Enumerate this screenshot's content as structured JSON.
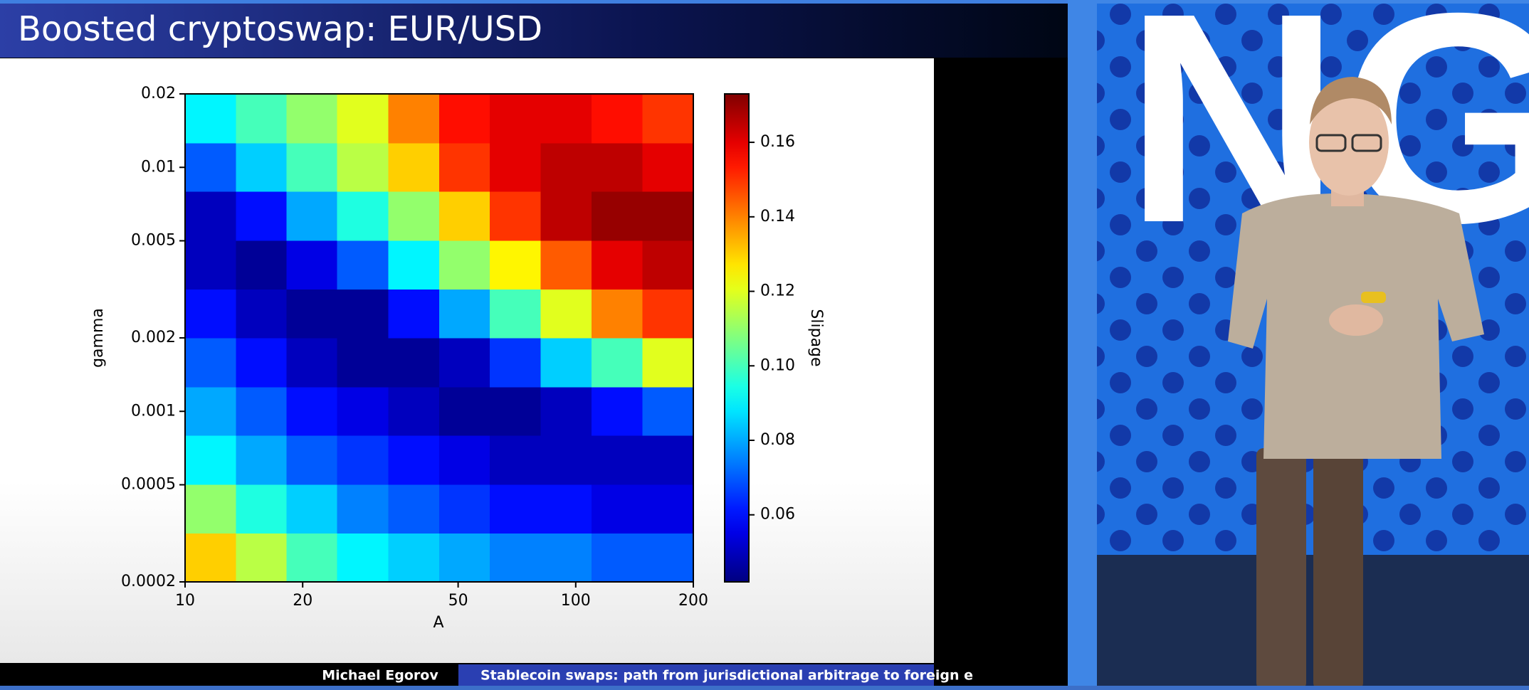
{
  "slide": {
    "title": "Boosted cryptoswap: EUR/USD",
    "footer_author": "Michael Egorov",
    "footer_talk": "Stablecoin swaps: path from jurisdictional arbitrage to foreign e"
  },
  "backdrop_text": "NG",
  "chart_data": {
    "type": "heatmap",
    "xlabel": "A",
    "ylabel": "gamma",
    "colorbar_label": "Slipage",
    "log_x": true,
    "log_y": true,
    "xlim": [
      10,
      200
    ],
    "ylim": [
      0.0002,
      0.02
    ],
    "xticks": [
      10,
      20,
      50,
      100,
      200
    ],
    "yticks": [
      0.0002,
      0.0005,
      0.001,
      0.002,
      0.005,
      0.01,
      0.02
    ],
    "xbins": [
      10,
      13.5,
      18.2,
      24.5,
      33.1,
      44.7,
      60.3,
      81.4,
      109.8,
      148.2,
      200
    ],
    "ybins": [
      0.0002,
      0.000317,
      0.000502,
      0.000796,
      0.00126,
      0.002,
      0.00317,
      0.00502,
      0.00796,
      0.0126,
      0.02
    ],
    "values": [
      [
        0.13,
        0.115,
        0.1,
        0.09,
        0.085,
        0.08,
        0.075,
        0.075,
        0.07,
        0.07
      ],
      [
        0.11,
        0.095,
        0.085,
        0.075,
        0.07,
        0.065,
        0.06,
        0.06,
        0.055,
        0.055
      ],
      [
        0.09,
        0.08,
        0.07,
        0.065,
        0.06,
        0.055,
        0.05,
        0.05,
        0.05,
        0.05
      ],
      [
        0.08,
        0.07,
        0.06,
        0.055,
        0.05,
        0.045,
        0.045,
        0.05,
        0.06,
        0.07
      ],
      [
        0.07,
        0.06,
        0.05,
        0.045,
        0.045,
        0.05,
        0.065,
        0.085,
        0.1,
        0.12
      ],
      [
        0.06,
        0.05,
        0.045,
        0.045,
        0.06,
        0.08,
        0.1,
        0.12,
        0.14,
        0.15
      ],
      [
        0.05,
        0.045,
        0.055,
        0.07,
        0.09,
        0.11,
        0.125,
        0.145,
        0.16,
        0.165
      ],
      [
        0.05,
        0.06,
        0.08,
        0.095,
        0.11,
        0.13,
        0.15,
        0.165,
        0.17,
        0.17
      ],
      [
        0.07,
        0.085,
        0.1,
        0.115,
        0.13,
        0.15,
        0.16,
        0.165,
        0.165,
        0.16
      ],
      [
        0.09,
        0.1,
        0.11,
        0.12,
        0.14,
        0.155,
        0.16,
        0.16,
        0.155,
        0.15
      ]
    ],
    "colormap": "jet",
    "clim": [
      0.042,
      0.173
    ],
    "cticks": [
      0.06,
      0.08,
      {
        "value": 0.1,
        "label": "0.10"
      },
      0.12,
      0.14,
      0.16
    ]
  }
}
